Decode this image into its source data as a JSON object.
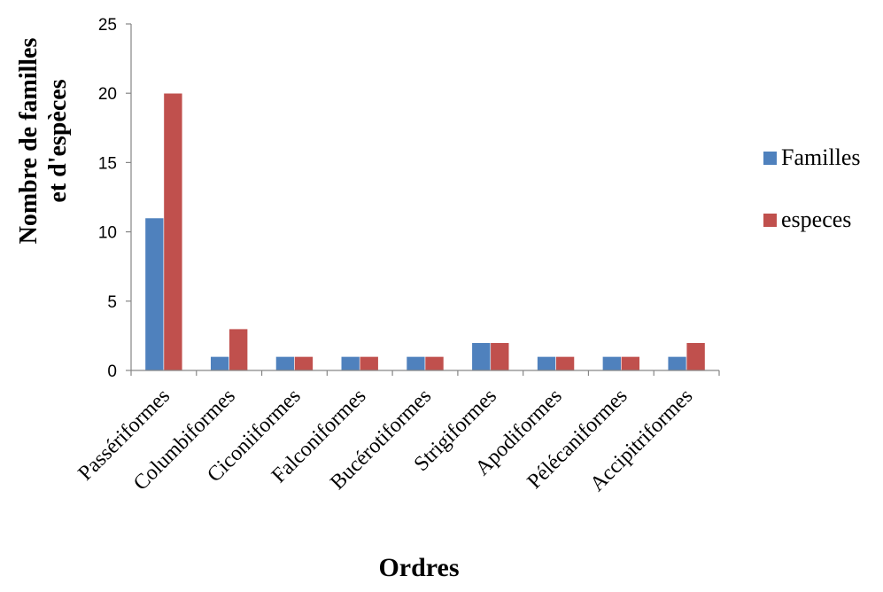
{
  "chart_data": {
    "type": "bar",
    "xlabel": "Ordres",
    "ylabel_lines": [
      "Nombre de familles",
      "et d'espèces"
    ],
    "ylim": [
      0,
      25
    ],
    "yticks": [
      0,
      5,
      10,
      15,
      20,
      25
    ],
    "grid": false,
    "legend_position": "right",
    "categories": [
      "Passériformes",
      "Columbiformes",
      "Ciconiiformes",
      "Falconiformes",
      "Bucérotiformes",
      "Strigiformes",
      "Apodiformes",
      "Pélécaniformes",
      "Accipitriformes"
    ],
    "series": [
      {
        "name": "Familles",
        "color": "#4F81BD",
        "values": [
          11,
          1,
          1,
          1,
          1,
          2,
          1,
          1,
          1
        ]
      },
      {
        "name": "especes",
        "color": "#C0504D",
        "values": [
          20,
          3,
          1,
          1,
          1,
          2,
          1,
          1,
          2
        ]
      }
    ]
  }
}
